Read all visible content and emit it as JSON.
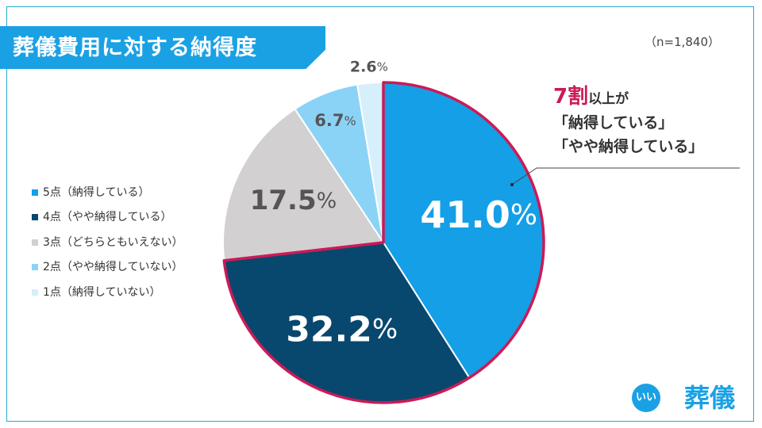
{
  "header": {
    "title": "葬儀費用に対する納得度",
    "sample_size": "（n=1,840）"
  },
  "chart_data": {
    "type": "pie",
    "title": "葬儀費用に対する納得度",
    "slices": [
      {
        "name": "5点（納得している）",
        "value": 41.0,
        "label": "41.0%",
        "color": "#149fe6",
        "highlight": true
      },
      {
        "name": "4点（やや納得している）",
        "value": 32.2,
        "label": "32.2%",
        "color": "#08486e",
        "highlight": true
      },
      {
        "name": "3点（どちらともいえない）",
        "value": 17.5,
        "label": "17.5%",
        "color": "#d3d0d1",
        "highlight": false
      },
      {
        "name": "2点（やや納得していない）",
        "value": 6.7,
        "label": "6.7%",
        "color": "#8bd3f6",
        "highlight": false
      },
      {
        "name": "1点（納得していない）",
        "value": 2.6,
        "label": "2.6%",
        "color": "#d5effb",
        "highlight": false
      }
    ],
    "highlight_color": "#cc1a56",
    "legend_position": "left"
  },
  "callout": {
    "big": "7割",
    "mid": "以上が",
    "line2": "「納得している」",
    "line3": "「やや納得している」"
  },
  "brand": {
    "badge1": "いい",
    "badge2": "",
    "word": "葬儀"
  }
}
